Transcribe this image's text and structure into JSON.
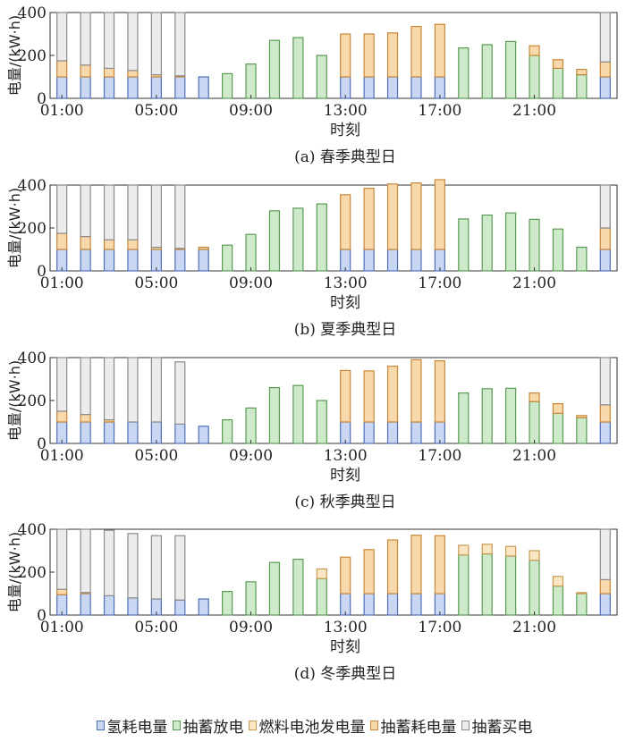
{
  "legend": [
    {
      "label": "氢耗电量",
      "color": "#6f8fd6"
    },
    {
      "label": "抽蓄放电",
      "color": "#a6d39e"
    },
    {
      "label": "燃料电池发电量",
      "color": "#f6d8a0"
    },
    {
      "label": "抽蓄耗电量",
      "color": "#f3b86a"
    },
    {
      "label": "抽蓄买电",
      "color": "#d9d9d9"
    }
  ],
  "colors": {
    "hydrogen": {
      "fill": "#c9d7f2",
      "stroke": "#4f6fb8"
    },
    "pumped_discharge": {
      "fill": "#cfeacb",
      "stroke": "#5a9a55"
    },
    "fuel_cell": {
      "fill": "#fbe6c4",
      "stroke": "#c89a55"
    },
    "pumped_consume": {
      "fill": "#f8d9ab",
      "stroke": "#c8883a"
    },
    "pumped_buy": {
      "fill": "#ececec",
      "stroke": "#8c8c8c"
    }
  },
  "chart_data": [
    {
      "type": "bar",
      "stacked": true,
      "caption": "(a) 春季典型日",
      "xlabel": "时刻",
      "ylabel": "电量/(kW·h)",
      "ylim": [
        0,
        400
      ],
      "yticks": [
        0,
        200,
        400
      ],
      "xticks": [
        "01:00",
        "05:00",
        "09:00",
        "13:00",
        "17:00",
        "21:00"
      ],
      "x": [
        "01:00",
        "02:00",
        "03:00",
        "04:00",
        "05:00",
        "06:00",
        "07:00",
        "08:00",
        "09:00",
        "10:00",
        "11:00",
        "12:00",
        "13:00",
        "14:00",
        "15:00",
        "16:00",
        "17:00",
        "18:00",
        "19:00",
        "20:00",
        "21:00",
        "22:00",
        "23:00",
        "24:00"
      ],
      "series": [
        {
          "key": "hydrogen",
          "name": "氢耗电量",
          "values": [
            100,
            100,
            100,
            100,
            100,
            100,
            100,
            0,
            0,
            0,
            0,
            0,
            100,
            100,
            100,
            100,
            100,
            0,
            0,
            0,
            0,
            0,
            0,
            100
          ]
        },
        {
          "key": "pumped_discharge",
          "name": "抽蓄放电",
          "values": [
            0,
            0,
            0,
            0,
            0,
            0,
            0,
            115,
            160,
            270,
            283,
            200,
            0,
            0,
            0,
            0,
            0,
            235,
            250,
            265,
            200,
            140,
            110,
            0
          ]
        },
        {
          "key": "fuel_cell",
          "name": "燃料电池发电量",
          "values": [
            0,
            0,
            0,
            0,
            0,
            0,
            0,
            0,
            0,
            0,
            0,
            0,
            0,
            0,
            0,
            0,
            0,
            0,
            0,
            0,
            0,
            0,
            0,
            0
          ]
        },
        {
          "key": "pumped_consume",
          "name": "抽蓄耗电量",
          "values": [
            75,
            55,
            40,
            30,
            10,
            5,
            0,
            0,
            0,
            0,
            0,
            0,
            200,
            200,
            205,
            235,
            245,
            0,
            0,
            0,
            45,
            40,
            25,
            70
          ]
        },
        {
          "key": "pumped_buy",
          "name": "抽蓄买电",
          "values": [
            225,
            245,
            260,
            270,
            290,
            295,
            0,
            0,
            0,
            0,
            0,
            0,
            0,
            0,
            0,
            0,
            0,
            0,
            0,
            0,
            0,
            0,
            0,
            230
          ]
        }
      ]
    },
    {
      "type": "bar",
      "stacked": true,
      "caption": "(b) 夏季典型日",
      "xlabel": "时刻",
      "ylabel": "电量/(kW·h)",
      "ylim": [
        0,
        400
      ],
      "yticks": [
        0,
        200,
        400
      ],
      "xticks": [
        "01:00",
        "05:00",
        "09:00",
        "13:00",
        "17:00",
        "21:00"
      ],
      "x": [
        "01:00",
        "02:00",
        "03:00",
        "04:00",
        "05:00",
        "06:00",
        "07:00",
        "08:00",
        "09:00",
        "10:00",
        "11:00",
        "12:00",
        "13:00",
        "14:00",
        "15:00",
        "16:00",
        "17:00",
        "18:00",
        "19:00",
        "20:00",
        "21:00",
        "22:00",
        "23:00",
        "24:00"
      ],
      "series": [
        {
          "key": "hydrogen",
          "name": "氢耗电量",
          "values": [
            100,
            100,
            100,
            100,
            100,
            100,
            100,
            0,
            0,
            0,
            0,
            0,
            100,
            100,
            100,
            100,
            100,
            0,
            0,
            0,
            0,
            0,
            0,
            100
          ]
        },
        {
          "key": "pumped_discharge",
          "name": "抽蓄放电",
          "values": [
            0,
            0,
            0,
            0,
            0,
            0,
            0,
            120,
            170,
            280,
            292,
            312,
            0,
            0,
            0,
            0,
            0,
            242,
            260,
            270,
            240,
            195,
            110,
            0
          ]
        },
        {
          "key": "fuel_cell",
          "name": "燃料电池发电量",
          "values": [
            0,
            0,
            0,
            0,
            0,
            0,
            0,
            0,
            0,
            0,
            0,
            0,
            0,
            0,
            0,
            0,
            0,
            0,
            0,
            0,
            0,
            0,
            0,
            0
          ]
        },
        {
          "key": "pumped_consume",
          "name": "抽蓄耗电量",
          "values": [
            75,
            60,
            45,
            45,
            10,
            5,
            10,
            0,
            0,
            0,
            0,
            0,
            255,
            285,
            305,
            310,
            325,
            0,
            0,
            0,
            0,
            0,
            0,
            100
          ]
        },
        {
          "key": "pumped_buy",
          "name": "抽蓄买电",
          "values": [
            225,
            240,
            255,
            255,
            290,
            295,
            0,
            0,
            0,
            0,
            0,
            0,
            0,
            0,
            0,
            0,
            0,
            0,
            0,
            0,
            0,
            0,
            0,
            200
          ]
        }
      ]
    },
    {
      "type": "bar",
      "stacked": true,
      "caption": "(c) 秋季典型日",
      "xlabel": "时刻",
      "ylabel": "电量/(kW·h)",
      "ylim": [
        0,
        400
      ],
      "yticks": [
        0,
        200,
        400
      ],
      "xticks": [
        "01:00",
        "05:00",
        "09:00",
        "13:00",
        "17:00",
        "21:00"
      ],
      "x": [
        "01:00",
        "02:00",
        "03:00",
        "04:00",
        "05:00",
        "06:00",
        "07:00",
        "08:00",
        "09:00",
        "10:00",
        "11:00",
        "12:00",
        "13:00",
        "14:00",
        "15:00",
        "16:00",
        "17:00",
        "18:00",
        "19:00",
        "20:00",
        "21:00",
        "22:00",
        "23:00",
        "24:00"
      ],
      "series": [
        {
          "key": "hydrogen",
          "name": "氢耗电量",
          "values": [
            100,
            100,
            100,
            100,
            100,
            90,
            80,
            0,
            0,
            0,
            0,
            0,
            100,
            100,
            100,
            100,
            100,
            0,
            0,
            0,
            0,
            0,
            0,
            100
          ]
        },
        {
          "key": "pumped_discharge",
          "name": "抽蓄放电",
          "values": [
            0,
            0,
            0,
            0,
            0,
            0,
            0,
            110,
            165,
            260,
            270,
            200,
            0,
            0,
            0,
            0,
            0,
            235,
            255,
            257,
            195,
            140,
            120,
            0
          ]
        },
        {
          "key": "fuel_cell",
          "name": "燃料电池发电量",
          "values": [
            0,
            0,
            0,
            0,
            0,
            0,
            0,
            0,
            0,
            0,
            0,
            0,
            0,
            0,
            0,
            0,
            0,
            0,
            0,
            0,
            0,
            0,
            0,
            0
          ]
        },
        {
          "key": "pumped_consume",
          "name": "抽蓄耗电量",
          "values": [
            50,
            35,
            10,
            0,
            0,
            0,
            0,
            0,
            0,
            0,
            0,
            0,
            240,
            238,
            260,
            290,
            285,
            0,
            0,
            0,
            40,
            45,
            10,
            80
          ]
        },
        {
          "key": "pumped_buy",
          "name": "抽蓄买电",
          "values": [
            250,
            265,
            290,
            300,
            300,
            290,
            0,
            0,
            0,
            0,
            0,
            0,
            0,
            0,
            0,
            0,
            0,
            0,
            0,
            0,
            0,
            0,
            0,
            220
          ]
        }
      ]
    },
    {
      "type": "bar",
      "stacked": true,
      "caption": "(d) 冬季典型日",
      "xlabel": "时刻",
      "ylabel": "电量/(kW·h)",
      "ylim": [
        0,
        400
      ],
      "yticks": [
        0,
        200,
        400
      ],
      "xticks": [
        "01:00",
        "05:00",
        "09:00",
        "13:00",
        "17:00",
        "21:00"
      ],
      "x": [
        "01:00",
        "02:00",
        "03:00",
        "04:00",
        "05:00",
        "06:00",
        "07:00",
        "08:00",
        "09:00",
        "10:00",
        "11:00",
        "12:00",
        "13:00",
        "14:00",
        "15:00",
        "16:00",
        "17:00",
        "18:00",
        "19:00",
        "20:00",
        "21:00",
        "22:00",
        "23:00",
        "24:00"
      ],
      "series": [
        {
          "key": "hydrogen",
          "name": "氢耗电量",
          "values": [
            95,
            100,
            90,
            80,
            75,
            70,
            75,
            0,
            0,
            0,
            0,
            0,
            100,
            100,
            100,
            100,
            100,
            0,
            0,
            0,
            0,
            0,
            0,
            100
          ]
        },
        {
          "key": "pumped_discharge",
          "name": "抽蓄放电",
          "values": [
            0,
            0,
            0,
            0,
            0,
            0,
            0,
            110,
            155,
            245,
            260,
            170,
            0,
            0,
            0,
            0,
            0,
            280,
            285,
            275,
            255,
            135,
            100,
            0
          ]
        },
        {
          "key": "fuel_cell",
          "name": "燃料电池发电量",
          "values": [
            0,
            0,
            0,
            0,
            0,
            0,
            0,
            0,
            0,
            0,
            0,
            45,
            0,
            0,
            0,
            0,
            0,
            45,
            45,
            45,
            45,
            45,
            5,
            0
          ]
        },
        {
          "key": "pumped_consume",
          "name": "抽蓄耗电量",
          "values": [
            25,
            5,
            0,
            0,
            0,
            0,
            0,
            0,
            0,
            0,
            0,
            0,
            170,
            205,
            250,
            272,
            270,
            0,
            0,
            0,
            0,
            0,
            0,
            65
          ]
        },
        {
          "key": "pumped_buy",
          "name": "抽蓄买电",
          "values": [
            280,
            295,
            305,
            300,
            295,
            300,
            0,
            0,
            0,
            0,
            0,
            0,
            0,
            0,
            0,
            0,
            0,
            0,
            0,
            0,
            0,
            0,
            0,
            235
          ]
        }
      ]
    }
  ]
}
